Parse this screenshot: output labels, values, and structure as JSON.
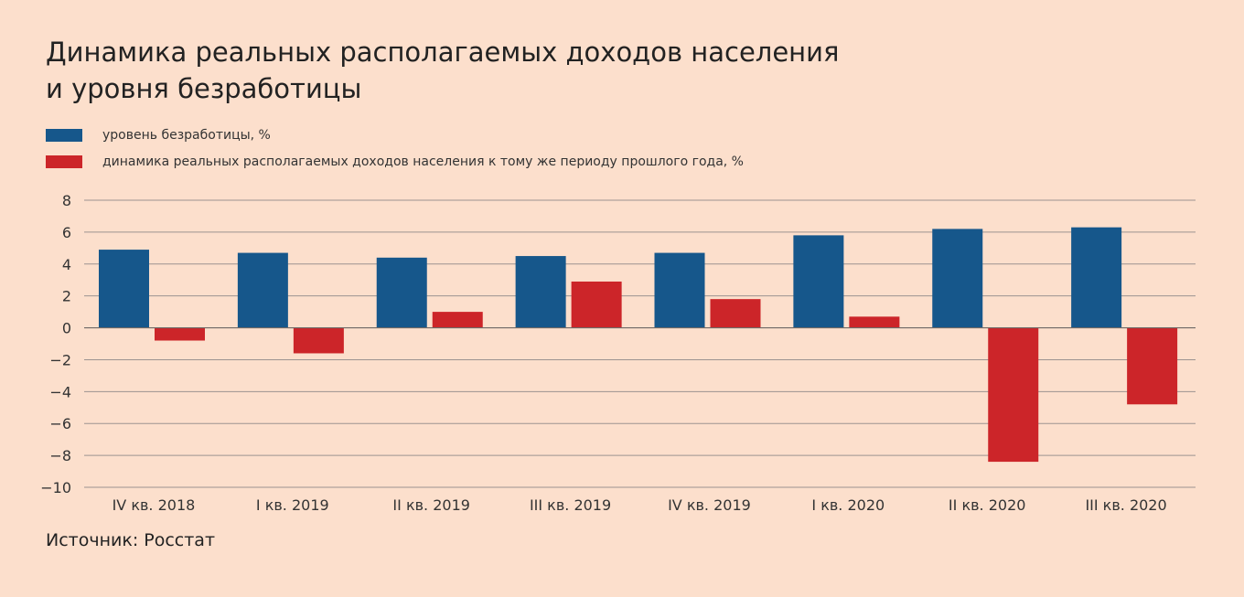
{
  "title_lines": [
    "Динамика реальных располагаемых доходов населения",
    "и уровня безработицы"
  ],
  "source": "Источник: Росстат",
  "colors": {
    "background": "#fcdfcc",
    "unemployment": "#16578b",
    "income": "#cc2529",
    "grid": "#9b9390"
  },
  "chart_data": {
    "type": "bar",
    "categories": [
      "IV кв. 2018",
      "I кв. 2019",
      "II кв. 2019",
      "III кв. 2019",
      "IV кв. 2019",
      "I кв. 2020",
      "II кв. 2020",
      "III кв. 2020"
    ],
    "series": [
      {
        "name": "уровень безработицы, %",
        "color": "#16578b",
        "values": [
          4.9,
          4.7,
          4.4,
          4.5,
          4.7,
          5.8,
          6.2,
          6.3
        ]
      },
      {
        "name": "динамика реальных располагаемых доходов населения к тому же периоду прошлого года, %",
        "color": "#cc2529",
        "values": [
          -0.8,
          -1.6,
          1.0,
          2.9,
          1.8,
          0.7,
          -8.4,
          -4.8
        ]
      }
    ],
    "ylim": [
      -10,
      8
    ],
    "yticks": [
      8,
      6,
      4,
      2,
      0,
      -2,
      -4,
      -6,
      -8,
      -10
    ],
    "grid": true,
    "legend_position": "top-left"
  }
}
